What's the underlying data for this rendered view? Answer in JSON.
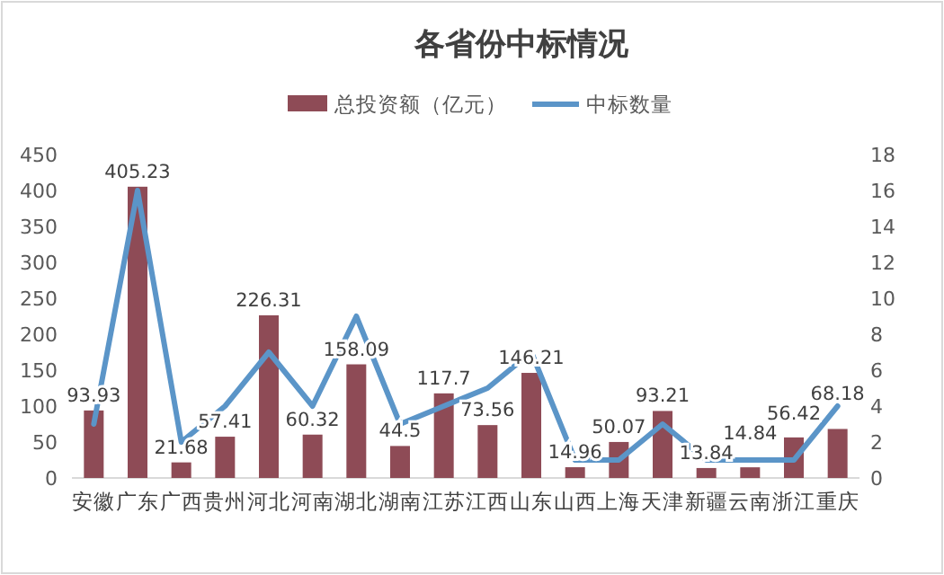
{
  "chart_data": {
    "type": "bar",
    "title": "各省份中标情况",
    "categories": [
      "安徽",
      "广东",
      "广西",
      "贵州",
      "河北",
      "河南",
      "湖北",
      "湖南",
      "江苏",
      "江西",
      "山东",
      "山西",
      "上海",
      "天津",
      "新疆",
      "云南",
      "浙江",
      "重庆"
    ],
    "series": [
      {
        "name": "总投资额（亿元）",
        "color": "#8e4b56",
        "values": [
          93.93,
          405.23,
          21.68,
          57.41,
          226.31,
          60.32,
          158.09,
          44.5,
          117.7,
          73.56,
          146.21,
          14.96,
          50.07,
          93.21,
          13.84,
          14.84,
          56.42,
          68.18
        ],
        "value_labels": [
          "93.93",
          "405.23",
          "21.68",
          "57.41",
          "226.31",
          "60.32",
          "158.09",
          "44.5",
          "117.7",
          "73.56",
          "146.21",
          "14.96",
          "50.07",
          "93.21",
          "13.84",
          "14.84",
          "56.42",
          "68.18"
        ]
      },
      {
        "name": "中标数量",
        "type": "line",
        "axis": "y2",
        "color": "#5b95c8",
        "values": [
          3,
          16,
          2,
          4,
          7,
          4,
          9,
          3,
          4,
          5,
          7,
          1,
          1,
          3,
          1,
          1,
          1,
          4
        ]
      }
    ],
    "ylim": [
      0,
      450
    ],
    "yticks": [
      0,
      50,
      100,
      150,
      200,
      250,
      300,
      350,
      400,
      450
    ],
    "y2lim": [
      0,
      18
    ],
    "y2ticks": [
      0,
      2,
      4,
      6,
      8,
      10,
      12,
      14,
      16,
      18
    ],
    "grid": false,
    "legend": "top"
  }
}
